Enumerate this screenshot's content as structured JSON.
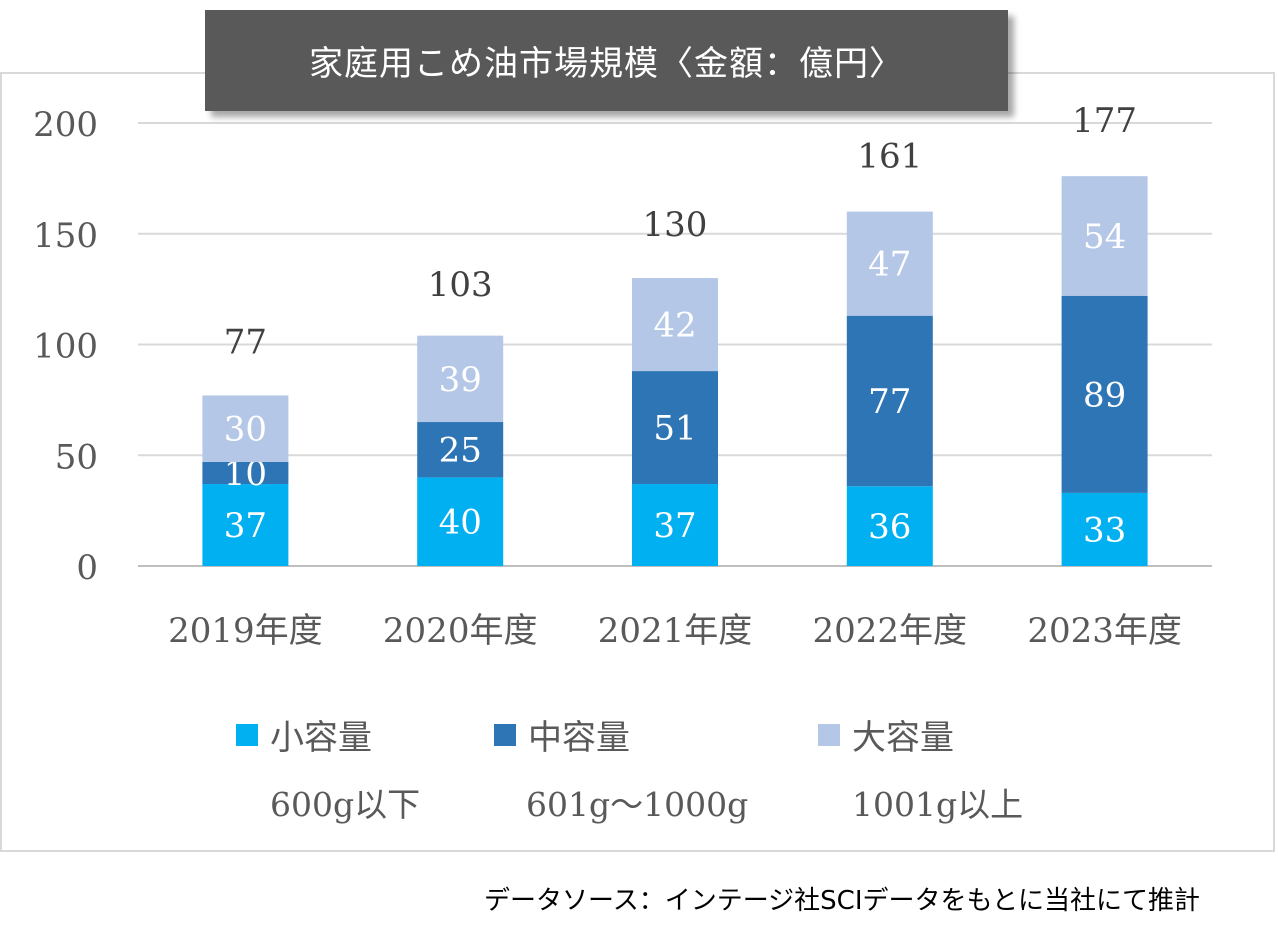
{
  "chart_data": {
    "type": "bar",
    "stacked": true,
    "title": "家庭用こめ油市場規模〈金額：億円〉",
    "categories": [
      "2019年度",
      "2020年度",
      "2021年度",
      "2022年度",
      "2023年度"
    ],
    "series": [
      {
        "name": "小容量",
        "sublabel": "600g以下",
        "color": "#00b0f0",
        "values": [
          37,
          40,
          37,
          36,
          33
        ]
      },
      {
        "name": "中容量",
        "sublabel": "601g〜1000g",
        "color": "#2e75b6",
        "values": [
          10,
          25,
          51,
          77,
          89
        ]
      },
      {
        "name": "大容量",
        "sublabel": "1001g以上",
        "color": "#b4c7e7",
        "values": [
          30,
          39,
          42,
          47,
          54
        ]
      }
    ],
    "totals": [
      77,
      103,
      130,
      161,
      177
    ],
    "ylim": [
      0,
      200
    ],
    "yticks": [
      "0",
      "50",
      "100",
      "150",
      "200"
    ],
    "xlabel": "",
    "ylabel": "",
    "grid": true,
    "legend_position": "bottom"
  },
  "source_note": "データソース：インテージ社SCIデータをもとに当社にて推計",
  "colors": {
    "title_bg": "#595959",
    "gridline": "#d9d9d9",
    "axis_text": "#595959"
  }
}
